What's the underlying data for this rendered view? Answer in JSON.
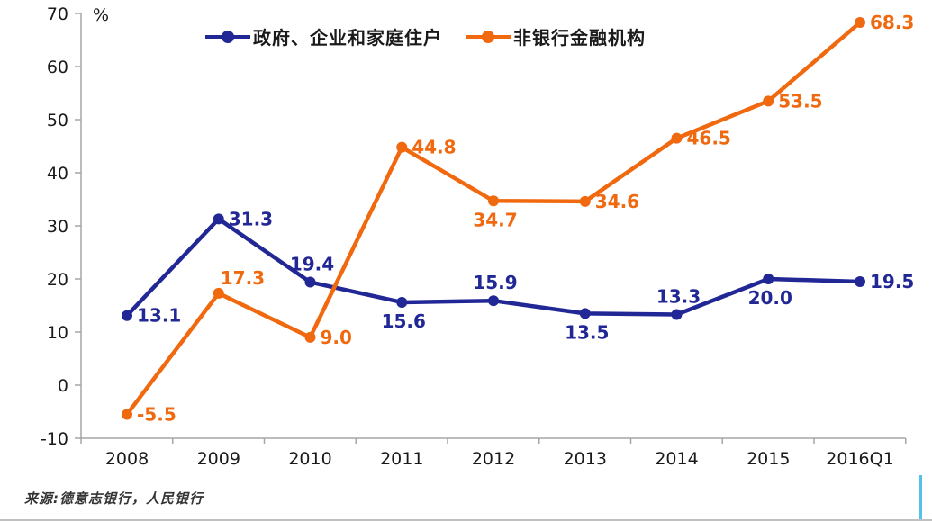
{
  "chart": {
    "unit_label": "%",
    "source_note": "来源:德意志银行，人民银行",
    "axis_color": "#a6a6a6",
    "tick_label_color": "#1a1a1a",
    "chart_data": {
      "type": "line",
      "categories": [
        "2008",
        "2009",
        "2010",
        "2011",
        "2012",
        "2013",
        "2014",
        "2015",
        "2016Q1"
      ],
      "xlabel": "",
      "ylabel": "%",
      "ylim": [
        -10,
        70
      ],
      "y_ticks": [
        -10,
        0,
        10,
        20,
        30,
        40,
        50,
        60,
        70
      ],
      "grid": false,
      "legend_position": "top",
      "value_decimals": 1,
      "series": [
        {
          "name": "政府、企业和家庭住户",
          "color": "#212795",
          "values": [
            13.1,
            31.3,
            19.4,
            15.6,
            15.9,
            13.5,
            13.3,
            20.0,
            19.5
          ],
          "label_pos": [
            "right",
            "right",
            "above",
            "below",
            "above",
            "below",
            "above",
            "below",
            "right"
          ]
        },
        {
          "name": "非银行金融机构",
          "color": "#F0690F",
          "values": [
            -5.5,
            17.3,
            9.0,
            44.8,
            34.7,
            34.6,
            46.5,
            53.5,
            68.3
          ],
          "label_pos": [
            "right",
            "above-right",
            "right",
            "right",
            "below",
            "right",
            "right",
            "right",
            "right"
          ]
        }
      ]
    }
  }
}
